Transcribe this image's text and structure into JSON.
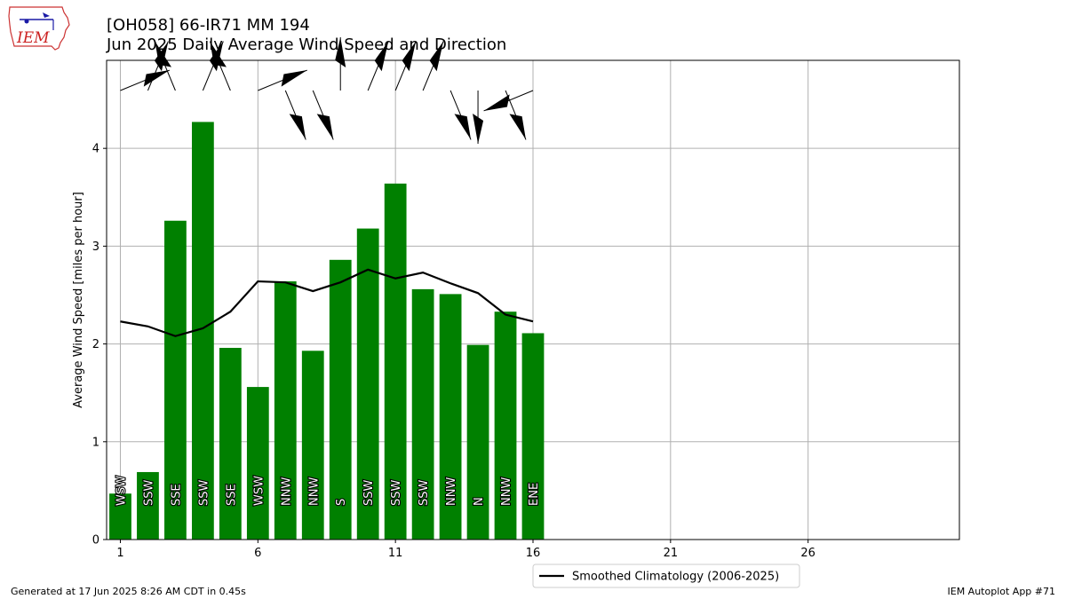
{
  "header": {
    "title_line1": "[OH058] 66-IR71 MM 194",
    "title_line2": "Jun 2025 Daily Average Wind Speed and Direction",
    "logo_text": "IEM"
  },
  "footer": {
    "generated": "Generated at 17 Jun 2025 8:26 AM CDT in 0.45s",
    "app": "IEM Autoplot App #71"
  },
  "colors": {
    "bar": "#008000",
    "climatology_line": "#000000",
    "grid": "#b0b0b0"
  },
  "chart_data": {
    "type": "bar",
    "title": "Jun 2025 Daily Average Wind Speed and Direction",
    "xlabel": "",
    "ylabel": "Average Wind Speed [miles per hour]",
    "xlim": [
      0.5,
      31.5
    ],
    "ylim": [
      0,
      4.9
    ],
    "xticks": [
      1,
      6,
      11,
      16,
      21,
      26
    ],
    "yticks": [
      0,
      1,
      2,
      3,
      4
    ],
    "grid": true,
    "legend": "bottom-center",
    "days": [
      1,
      2,
      3,
      4,
      5,
      6,
      7,
      8,
      9,
      10,
      11,
      12,
      13,
      14,
      15,
      16
    ],
    "speeds": [
      0.47,
      0.69,
      3.26,
      4.27,
      1.96,
      1.56,
      2.64,
      1.93,
      2.86,
      3.18,
      3.64,
      2.56,
      2.51,
      1.99,
      2.33,
      2.11
    ],
    "directions": [
      "WSW",
      "SSW",
      "SSE",
      "SSW",
      "SSE",
      "WSW",
      "NNW",
      "NNW",
      "S",
      "SSW",
      "SSW",
      "SSW",
      "NNW",
      "N",
      "NNW",
      "ENE"
    ],
    "series": [
      {
        "name": "Smoothed Climatology (2006-2025)",
        "type": "line",
        "x": [
          1,
          2,
          3,
          4,
          5,
          6,
          7,
          8,
          9,
          10,
          11,
          12,
          13,
          14,
          15,
          16
        ],
        "values": [
          2.23,
          2.18,
          2.08,
          2.16,
          2.33,
          2.64,
          2.63,
          2.54,
          2.63,
          2.76,
          2.67,
          2.73,
          2.62,
          2.52,
          2.3,
          2.23
        ]
      }
    ]
  }
}
